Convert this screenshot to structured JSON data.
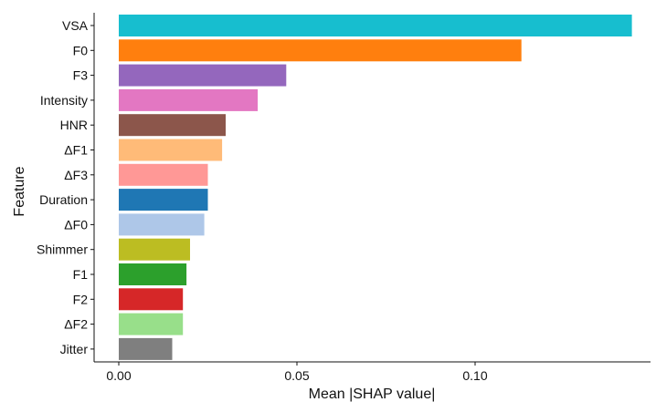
{
  "chart_data": {
    "type": "bar",
    "orientation": "horizontal",
    "title": "",
    "xlabel": "Mean |SHAP value|",
    "ylabel": "Feature",
    "xlim": [
      -0.007,
      0.15
    ],
    "xticks": [
      0.0,
      0.05,
      0.1
    ],
    "xtick_labels": [
      "0.00",
      "0.05",
      "0.10"
    ],
    "grid": false,
    "legend": "none",
    "categories": [
      "VSA",
      "F0",
      "F3",
      "Intensity",
      "HNR",
      "ΔF1",
      "ΔF3",
      "Duration",
      "ΔF0",
      "Shimmer",
      "F1",
      "F2",
      "ΔF2",
      "Jitter"
    ],
    "values": [
      0.144,
      0.113,
      0.047,
      0.039,
      0.03,
      0.029,
      0.025,
      0.025,
      0.024,
      0.02,
      0.019,
      0.018,
      0.018,
      0.015
    ],
    "colors": [
      "#17becf",
      "#ff7f0e",
      "#9467bd",
      "#e377c2",
      "#8c564b",
      "#ffbb78",
      "#ff9896",
      "#1f77b4",
      "#aec7e8",
      "#bcbd22",
      "#2ca02c",
      "#d62728",
      "#98df8a",
      "#7f7f7f"
    ]
  }
}
